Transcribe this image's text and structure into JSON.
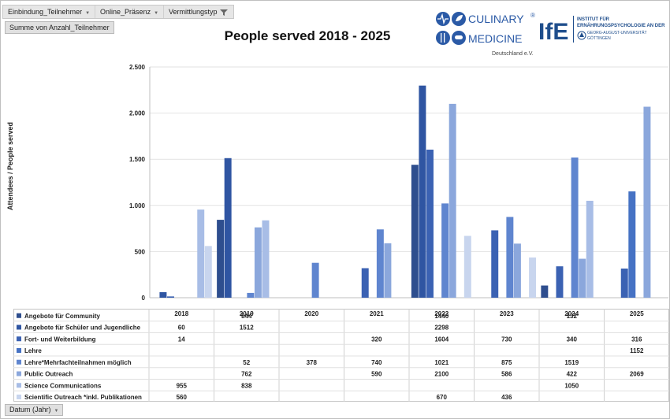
{
  "filters": [
    "Einbindung_Teilnehmer",
    "Online_Präsenz",
    "Vermittlungstyp"
  ],
  "value_field": "Summe von Anzahl_Teilnehmer",
  "axis_field": "Datum (Jahr)",
  "logos": {
    "cm_line1": "CULINARY",
    "cm_line2": "MEDICINE",
    "cm_reg": "®",
    "cm_sub": "Deutschland e.V.",
    "ife_mark": "IfE",
    "ife_line1": "INSTITUT FÜR",
    "ife_line2": "ERNÄHRUNGSPSYCHOLOGIE AN DER",
    "ife_line3": "GEORG-AUGUST-UNIVERSITÄT",
    "ife_line4": "GÖTTINGEN"
  },
  "chart_data": {
    "type": "bar",
    "title": "People served 2018 - 2025",
    "ylabel": "Attendees / People served",
    "xlabel": "",
    "ylim": [
      0,
      2500
    ],
    "yticks": [
      0,
      500,
      1000,
      1500,
      2000,
      2500
    ],
    "ytick_labels": [
      "0",
      "500",
      "1.000",
      "1.500",
      "2.000",
      "2.500"
    ],
    "categories": [
      "2018",
      "2019",
      "2020",
      "2021",
      "2022",
      "2023",
      "2024",
      "2025"
    ],
    "series": [
      {
        "name": "Angebote für Community",
        "color": "#2e4e8e",
        "values": [
          null,
          844,
          null,
          null,
          1440,
          null,
          132,
          null
        ]
      },
      {
        "name": "Angebote für Schüler und Jugendliche",
        "color": "#2f55a2",
        "values": [
          60,
          1512,
          null,
          null,
          2298,
          null,
          null,
          null
        ]
      },
      {
        "name": "Fort- und Weiterbildung",
        "color": "#3b62b3",
        "values": [
          14,
          null,
          null,
          320,
          1604,
          730,
          340,
          316
        ]
      },
      {
        "name": "Lehre",
        "color": "#4672c4",
        "values": [
          null,
          null,
          null,
          null,
          null,
          null,
          null,
          1152
        ]
      },
      {
        "name": "Lehre*Mehrfachteilnahmen möglich",
        "color": "#5f85cf",
        "values": [
          null,
          52,
          378,
          740,
          1021,
          875,
          1519,
          null
        ]
      },
      {
        "name": "Public Outreach",
        "color": "#8ba7dc",
        "values": [
          null,
          762,
          null,
          590,
          2100,
          586,
          422,
          2069
        ]
      },
      {
        "name": "Science Communications",
        "color": "#a8bde6",
        "values": [
          955,
          838,
          null,
          null,
          null,
          null,
          1050,
          null
        ]
      },
      {
        "name": "Scientific Outreach *inkl. Publikationen",
        "color": "#c8d5ee",
        "values": [
          560,
          null,
          null,
          null,
          670,
          436,
          null,
          null
        ]
      }
    ]
  }
}
